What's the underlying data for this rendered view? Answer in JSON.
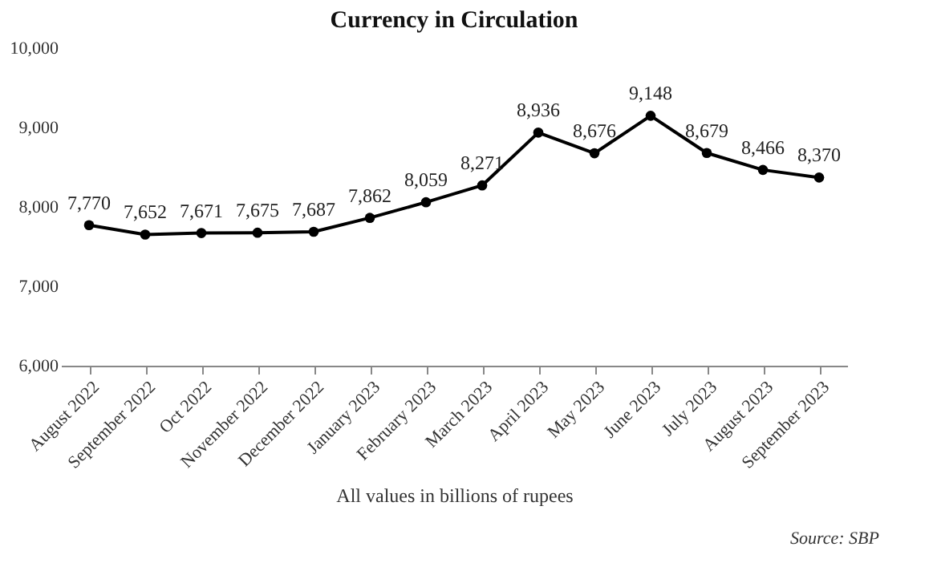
{
  "chart_data": {
    "type": "line",
    "title": "Currency in Circulation",
    "xlabel": "All values in billions of rupees",
    "categories": [
      "August 2022",
      "September 2022",
      "Oct 2022",
      "November 2022",
      "December 2022",
      "January 2023",
      "February 2023",
      "March 2023",
      "April 2023",
      "May 2023",
      "June 2023",
      "July 2023",
      "August 2023",
      "September 2023"
    ],
    "series": [
      {
        "color": "#000000",
        "values": [
          7770,
          7652,
          7671,
          7675,
          7687,
          7862,
          8059,
          8271,
          8936,
          8676,
          9148,
          8679,
          8466,
          8370
        ],
        "value_labels": [
          "7,770",
          "7,652",
          "7,671",
          "7,675",
          "7,687",
          "7,862",
          "8,059",
          "8,271",
          "8,936",
          "8,676",
          "9,148",
          "8,679",
          "8,466",
          "8,370"
        ]
      }
    ],
    "ylim": [
      6000,
      10000
    ],
    "yticks": [
      {
        "value": 6000,
        "label": "6,000"
      },
      {
        "value": 7000,
        "label": "7,000"
      },
      {
        "value": 8000,
        "label": "8,000"
      },
      {
        "value": 9000,
        "label": "9,000"
      },
      {
        "value": 10000,
        "label": "10,000"
      }
    ],
    "grid": false,
    "marker": "circle",
    "line_style": "solid",
    "annotations": [
      "Source: SBP"
    ]
  }
}
